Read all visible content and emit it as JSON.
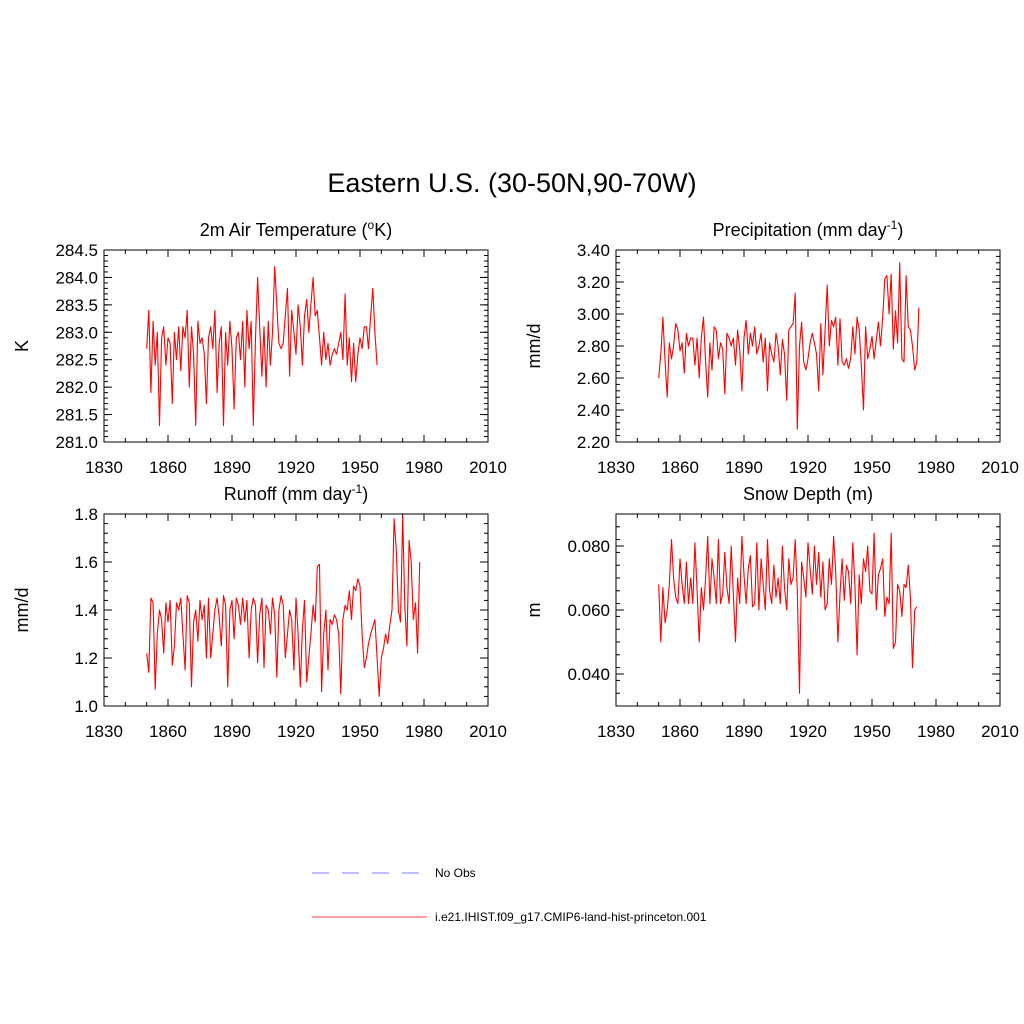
{
  "title": "Eastern U.S. (30-50N,90-70W)",
  "colors": {
    "model": "#ff0000",
    "obs": "#9999ff",
    "axis": "#000000"
  },
  "legend": [
    {
      "label": "No Obs",
      "style": "dashed",
      "color": "#9999ff"
    },
    {
      "label": "i.e21.IHIST.f09_g17.CMIP6-land-hist-princeton.001",
      "style": "solid",
      "color": "#ff6666"
    }
  ],
  "chart_data": [
    {
      "type": "line",
      "title": "2m Air Temperature (°K)",
      "title_main": "2m Air Temperature (",
      "title_sup": "o",
      "title_tail": "K)",
      "ylabel": "K",
      "xlim": [
        1830,
        2010
      ],
      "x_ticks": [
        1830,
        1860,
        1890,
        1920,
        1950,
        1980,
        2010
      ],
      "ylim": [
        281.0,
        284.5
      ],
      "y_ticks": [
        "281.0",
        "281.5",
        "282.0",
        "282.5",
        "283.0",
        "283.5",
        "284.0",
        "284.5"
      ],
      "y_tick_values": [
        281.0,
        281.5,
        282.0,
        282.5,
        283.0,
        283.5,
        284.0,
        284.5
      ],
      "series": [
        {
          "x_start": 1850,
          "values": [
            282.7,
            283.4,
            281.9,
            283.2,
            282.4,
            283.0,
            281.3,
            282.9,
            283.1,
            282.4,
            282.9,
            282.8,
            281.7,
            283.0,
            282.5,
            283.1,
            282.3,
            283.1,
            282.9,
            283.4,
            282.0,
            283.1,
            282.6,
            281.3,
            283.2,
            282.8,
            282.9,
            282.6,
            281.7,
            282.9,
            283.1,
            282.7,
            283.4,
            281.9,
            282.8,
            283.1,
            281.3,
            283.0,
            282.4,
            283.2,
            282.7,
            281.6,
            282.9,
            283.0,
            282.5,
            283.2,
            282.0,
            283.4,
            282.7,
            283.2,
            281.3,
            282.9,
            284.0,
            283.1,
            282.2,
            283.1,
            282.0,
            283.2,
            282.4,
            283.0,
            284.2,
            283.5,
            282.8,
            282.7,
            282.8,
            283.3,
            283.8,
            282.2,
            283.4,
            283.0,
            282.6,
            283.5,
            283.1,
            282.4,
            283.3,
            283.6,
            283.0,
            283.5,
            284.0,
            283.3,
            283.4,
            282.9,
            282.4,
            283.0,
            282.5,
            282.8,
            282.4,
            282.6,
            282.7,
            282.6,
            282.8,
            283.0,
            282.5,
            283.7,
            282.4,
            282.9,
            282.1,
            282.8,
            282.1,
            282.6,
            282.9,
            282.7,
            283.1,
            283.1,
            282.7,
            283.3,
            283.8,
            283.0,
            282.4
          ]
        }
      ]
    },
    {
      "type": "line",
      "title": "Precipitation (mm day-1)",
      "title_main": "Precipitation (mm day",
      "title_sup": "-1",
      "title_tail": ")",
      "ylabel": "mm/d",
      "xlim": [
        1830,
        2010
      ],
      "x_ticks": [
        1830,
        1860,
        1890,
        1920,
        1950,
        1980,
        2010
      ],
      "ylim": [
        2.2,
        3.4
      ],
      "y_ticks": [
        "2.20",
        "2.40",
        "2.60",
        "2.80",
        "3.00",
        "3.20",
        "3.40"
      ],
      "y_tick_values": [
        2.2,
        2.4,
        2.6,
        2.8,
        3.0,
        3.2,
        3.4
      ],
      "series": [
        {
          "x_start": 1850,
          "values": [
            2.6,
            2.75,
            2.98,
            2.7,
            2.48,
            2.82,
            2.72,
            2.8,
            2.94,
            2.9,
            2.77,
            2.82,
            2.63,
            2.88,
            2.8,
            2.85,
            2.85,
            2.68,
            2.85,
            2.6,
            2.85,
            2.98,
            2.7,
            2.48,
            2.82,
            2.65,
            2.92,
            2.9,
            2.72,
            2.82,
            2.78,
            2.5,
            2.88,
            2.85,
            2.8,
            2.85,
            2.68,
            2.9,
            2.78,
            2.52,
            2.85,
            2.96,
            2.75,
            2.88,
            2.8,
            2.92,
            2.75,
            2.8,
            2.88,
            2.7,
            2.85,
            2.52,
            2.82,
            2.75,
            2.7,
            2.88,
            2.8,
            2.62,
            2.84,
            2.75,
            2.46,
            2.9,
            2.92,
            2.94,
            3.13,
            2.28,
            2.8,
            2.95,
            2.7,
            2.65,
            2.72,
            2.82,
            2.88,
            2.82,
            2.75,
            2.52,
            2.94,
            2.62,
            2.9,
            3.18,
            2.8,
            2.96,
            2.92,
            2.98,
            2.68,
            2.97,
            2.7,
            2.68,
            2.72,
            2.66,
            2.72,
            2.92,
            2.75,
            2.98,
            2.9,
            2.68,
            2.4,
            2.92,
            2.72,
            2.78,
            2.86,
            2.72,
            2.84,
            2.95,
            2.8,
            2.98,
            3.22,
            3.24,
            3.0,
            3.25,
            2.78,
            3.02,
            2.82,
            3.32,
            2.72,
            2.7,
            3.24,
            2.92,
            2.9,
            2.8,
            2.65,
            2.7,
            3.04
          ]
        }
      ]
    },
    {
      "type": "line",
      "title": "Runoff (mm day-1)",
      "title_main": "Runoff (mm day",
      "title_sup": "-1",
      "title_tail": ")",
      "ylabel": "mm/d",
      "xlim": [
        1830,
        2010
      ],
      "x_ticks": [
        1830,
        1860,
        1890,
        1920,
        1950,
        1980,
        2010
      ],
      "ylim": [
        1.0,
        1.8
      ],
      "y_ticks": [
        "1.0",
        "1.2",
        "1.4",
        "1.6",
        "1.8"
      ],
      "y_tick_values": [
        1.0,
        1.2,
        1.4,
        1.6,
        1.8
      ],
      "series": [
        {
          "x_start": 1850,
          "values": [
            1.22,
            1.14,
            1.45,
            1.43,
            1.07,
            1.3,
            1.4,
            1.36,
            1.22,
            1.43,
            1.35,
            1.44,
            1.17,
            1.25,
            1.43,
            1.4,
            1.45,
            1.3,
            1.15,
            1.46,
            1.43,
            1.08,
            1.35,
            1.4,
            1.27,
            1.44,
            1.36,
            1.42,
            1.2,
            1.45,
            1.2,
            1.3,
            1.4,
            1.45,
            1.37,
            1.25,
            1.46,
            1.42,
            1.08,
            1.4,
            1.44,
            1.28,
            1.45,
            1.42,
            1.34,
            1.45,
            1.35,
            1.44,
            1.2,
            1.4,
            1.45,
            1.42,
            1.18,
            1.38,
            1.45,
            1.16,
            1.42,
            1.4,
            1.3,
            1.45,
            1.38,
            1.12,
            1.4,
            1.46,
            1.42,
            1.2,
            1.3,
            1.4,
            1.36,
            1.15,
            1.45,
            1.3,
            1.08,
            1.32,
            1.44,
            1.1,
            1.2,
            1.3,
            1.42,
            1.35,
            1.58,
            1.59,
            1.06,
            1.3,
            1.4,
            1.15,
            1.36,
            1.34,
            1.38,
            1.36,
            1.3,
            1.05,
            1.36,
            1.42,
            1.4,
            1.48,
            1.36,
            1.5,
            1.48,
            1.53,
            1.5,
            1.3,
            1.16,
            1.2,
            1.26,
            1.3,
            1.33,
            1.36,
            1.2,
            1.04,
            1.2,
            1.24,
            1.3,
            1.26,
            1.34,
            1.4,
            1.78,
            1.65,
            1.4,
            1.35,
            1.79,
            1.42,
            1.25,
            1.69,
            1.6,
            1.36,
            1.43,
            1.22,
            1.6
          ]
        }
      ]
    },
    {
      "type": "line",
      "title": "Snow Depth (m)",
      "title_main": "Snow Depth (m)",
      "title_sup": "",
      "title_tail": "",
      "ylabel": "m",
      "xlim": [
        1830,
        2010
      ],
      "x_ticks": [
        1830,
        1860,
        1890,
        1920,
        1950,
        1980,
        2010
      ],
      "ylim": [
        0.03,
        0.09
      ],
      "y_ticks": [
        "0.040",
        "0.060",
        "0.080"
      ],
      "y_tick_values": [
        0.04,
        0.06,
        0.08
      ],
      "series": [
        {
          "x_start": 1850,
          "values": [
            0.068,
            0.05,
            0.067,
            0.056,
            0.06,
            0.068,
            0.082,
            0.07,
            0.064,
            0.062,
            0.076,
            0.068,
            0.062,
            0.075,
            0.062,
            0.07,
            0.062,
            0.081,
            0.066,
            0.05,
            0.067,
            0.06,
            0.07,
            0.083,
            0.062,
            0.076,
            0.07,
            0.062,
            0.082,
            0.062,
            0.065,
            0.078,
            0.067,
            0.062,
            0.08,
            0.065,
            0.05,
            0.07,
            0.062,
            0.083,
            0.071,
            0.062,
            0.073,
            0.077,
            0.061,
            0.062,
            0.081,
            0.06,
            0.076,
            0.068,
            0.06,
            0.082,
            0.066,
            0.062,
            0.074,
            0.064,
            0.07,
            0.062,
            0.08,
            0.067,
            0.06,
            0.076,
            0.068,
            0.07,
            0.082,
            0.066,
            0.034,
            0.075,
            0.07,
            0.064,
            0.081,
            0.073,
            0.065,
            0.08,
            0.068,
            0.078,
            0.064,
            0.075,
            0.06,
            0.062,
            0.076,
            0.068,
            0.083,
            0.072,
            0.05,
            0.065,
            0.076,
            0.063,
            0.074,
            0.072,
            0.062,
            0.081,
            0.068,
            0.046,
            0.071,
            0.062,
            0.076,
            0.072,
            0.08,
            0.066,
            0.065,
            0.084,
            0.06,
            0.071,
            0.073,
            0.076,
            0.058,
            0.064,
            0.062,
            0.084,
            0.048,
            0.05,
            0.068,
            0.066,
            0.058,
            0.068,
            0.067,
            0.074,
            0.064,
            0.042,
            0.06,
            0.061
          ]
        }
      ]
    }
  ]
}
